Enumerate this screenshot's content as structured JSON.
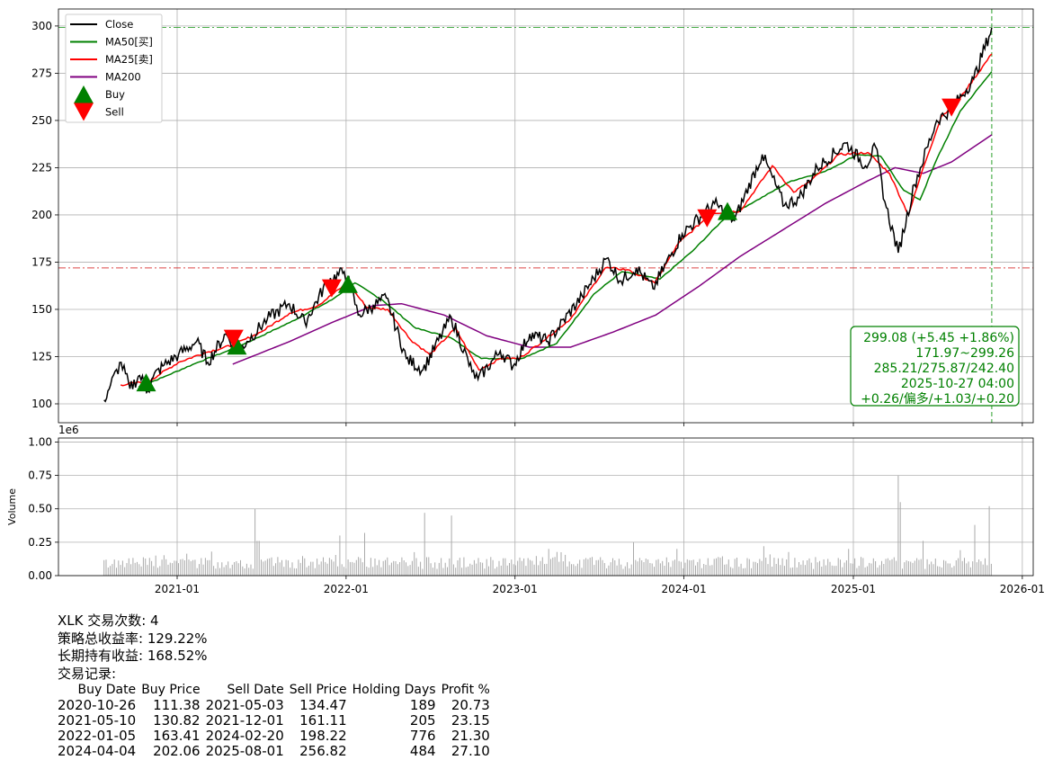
{
  "chart_data": [
    {
      "type": "line",
      "panel": "price",
      "x_ticks": [
        "2021-01",
        "2022-01",
        "2023-01",
        "2024-01",
        "2025-01",
        "2026-01"
      ],
      "ylim": [
        90,
        309
      ],
      "y_ticks": [
        100,
        125,
        150,
        175,
        200,
        225,
        250,
        275,
        300
      ],
      "grid": true,
      "legend_position": "top-left",
      "legend": [
        "Close",
        "MA50[买]",
        "MA25[卖]",
        "MA200",
        "Buy",
        "Sell"
      ],
      "colors": {
        "Close": "#000000",
        "MA50": "#008000",
        "MA25": "#ff0000",
        "MA200": "#800080",
        "Buy": "#008000",
        "Sell": "#ff0000",
        "hline_top": "#2ca02c",
        "hline_low": "#d62728"
      },
      "hlines": [
        {
          "value": 299.26,
          "style": "dash-dot",
          "color": "green"
        },
        {
          "value": 171.97,
          "style": "dash-dot",
          "color": "red"
        }
      ],
      "vline": {
        "date": "2025-10-27",
        "style": "dashed",
        "color": "green"
      },
      "close_series": [
        [
          "2020-07-27",
          102
        ],
        [
          "2020-08-10",
          110
        ],
        [
          "2020-09-02",
          122
        ],
        [
          "2020-09-21",
          108
        ],
        [
          "2020-10-12",
          115
        ],
        [
          "2020-10-30",
          107
        ],
        [
          "2020-11-10",
          114
        ],
        [
          "2020-12-01",
          120
        ],
        [
          "2021-01-04",
          126
        ],
        [
          "2021-02-12",
          133
        ],
        [
          "2021-03-08",
          122
        ],
        [
          "2021-04-16",
          137
        ],
        [
          "2021-05-12",
          128
        ],
        [
          "2021-06-01",
          133
        ],
        [
          "2021-07-15",
          145
        ],
        [
          "2021-08-31",
          153
        ],
        [
          "2021-10-04",
          143
        ],
        [
          "2021-11-22",
          165
        ],
        [
          "2021-12-28",
          170
        ],
        [
          "2022-01-10",
          163
        ],
        [
          "2022-01-27",
          147
        ],
        [
          "2022-03-01",
          152
        ],
        [
          "2022-03-29",
          156
        ],
        [
          "2022-05-11",
          124
        ],
        [
          "2022-06-16",
          118
        ],
        [
          "2022-08-16",
          146
        ],
        [
          "2022-09-30",
          117
        ],
        [
          "2022-10-13",
          113
        ],
        [
          "2022-11-30",
          128
        ],
        [
          "2022-12-28",
          120
        ],
        [
          "2023-02-02",
          137
        ],
        [
          "2023-03-13",
          133
        ],
        [
          "2023-05-26",
          157
        ],
        [
          "2023-07-18",
          177
        ],
        [
          "2023-08-18",
          165
        ],
        [
          "2023-09-20",
          172
        ],
        [
          "2023-10-26",
          161
        ],
        [
          "2023-12-28",
          190
        ],
        [
          "2024-03-07",
          206
        ],
        [
          "2024-04-19",
          197
        ],
        [
          "2024-06-18",
          232
        ],
        [
          "2024-08-05",
          205
        ],
        [
          "2024-09-06",
          209
        ],
        [
          "2024-10-15",
          225
        ],
        [
          "2024-12-16",
          238
        ],
        [
          "2025-01-27",
          226
        ],
        [
          "2025-02-18",
          236
        ],
        [
          "2025-03-10",
          207
        ],
        [
          "2025-04-08",
          180
        ],
        [
          "2025-05-13",
          216
        ],
        [
          "2025-06-30",
          250
        ],
        [
          "2025-08-01",
          256
        ],
        [
          "2025-09-18",
          272
        ],
        [
          "2025-10-27",
          299.08
        ]
      ],
      "ma25_series": [
        [
          "2020-09-01",
          110
        ],
        [
          "2020-11-01",
          112
        ],
        [
          "2021-01-04",
          122
        ],
        [
          "2021-03-01",
          127
        ],
        [
          "2021-05-01",
          131
        ],
        [
          "2021-07-01",
          138
        ],
        [
          "2021-09-01",
          148
        ],
        [
          "2021-11-01",
          152
        ],
        [
          "2022-01-04",
          164
        ],
        [
          "2022-02-15",
          151
        ],
        [
          "2022-04-01",
          150
        ],
        [
          "2022-05-20",
          134
        ],
        [
          "2022-07-01",
          126
        ],
        [
          "2022-08-25",
          140
        ],
        [
          "2022-10-15",
          118
        ],
        [
          "2022-12-01",
          124
        ],
        [
          "2023-01-10",
          124
        ],
        [
          "2023-03-01",
          133
        ],
        [
          "2023-05-01",
          145
        ],
        [
          "2023-07-15",
          172
        ],
        [
          "2023-09-01",
          171
        ],
        [
          "2023-10-30",
          164
        ],
        [
          "2023-12-20",
          185
        ],
        [
          "2024-03-01",
          201
        ],
        [
          "2024-05-01",
          202
        ],
        [
          "2024-07-10",
          226
        ],
        [
          "2024-08-25",
          212
        ],
        [
          "2024-10-01",
          218
        ],
        [
          "2024-12-01",
          232
        ],
        [
          "2025-02-01",
          233
        ],
        [
          "2025-03-20",
          222
        ],
        [
          "2025-04-30",
          200
        ],
        [
          "2025-06-01",
          225
        ],
        [
          "2025-07-10",
          252
        ],
        [
          "2025-08-20",
          262
        ],
        [
          "2025-10-27",
          285.21
        ]
      ],
      "ma50_series": [
        [
          "2020-10-10",
          109
        ],
        [
          "2020-12-01",
          114
        ],
        [
          "2021-02-15",
          122
        ],
        [
          "2021-04-20",
          128
        ],
        [
          "2021-06-15",
          134
        ],
        [
          "2021-09-01",
          143
        ],
        [
          "2021-12-01",
          155
        ],
        [
          "2022-01-20",
          164
        ],
        [
          "2022-03-20",
          155
        ],
        [
          "2022-06-01",
          140
        ],
        [
          "2022-08-15",
          135
        ],
        [
          "2022-10-20",
          124
        ],
        [
          "2023-01-15",
          124
        ],
        [
          "2023-04-01",
          132
        ],
        [
          "2023-06-20",
          158
        ],
        [
          "2023-08-20",
          170
        ],
        [
          "2023-11-10",
          166
        ],
        [
          "2024-01-20",
          181
        ],
        [
          "2024-04-01",
          199
        ],
        [
          "2024-06-01",
          207
        ],
        [
          "2024-08-20",
          218
        ],
        [
          "2024-11-01",
          223
        ],
        [
          "2025-01-10",
          232
        ],
        [
          "2025-03-01",
          231
        ],
        [
          "2025-04-20",
          213
        ],
        [
          "2025-05-25",
          208
        ],
        [
          "2025-07-01",
          230
        ],
        [
          "2025-08-20",
          255
        ],
        [
          "2025-10-27",
          275.87
        ]
      ],
      "ma200_series": [
        [
          "2021-05-01",
          121
        ],
        [
          "2021-09-01",
          133
        ],
        [
          "2021-12-01",
          143
        ],
        [
          "2022-03-01",
          152
        ],
        [
          "2022-05-01",
          153
        ],
        [
          "2022-08-01",
          147
        ],
        [
          "2022-11-01",
          136
        ],
        [
          "2023-02-01",
          130
        ],
        [
          "2023-05-01",
          130
        ],
        [
          "2023-08-01",
          138
        ],
        [
          "2023-11-01",
          147
        ],
        [
          "2024-02-01",
          162
        ],
        [
          "2024-05-01",
          178
        ],
        [
          "2024-08-01",
          192
        ],
        [
          "2024-11-01",
          206
        ],
        [
          "2025-02-01",
          218
        ],
        [
          "2025-04-01",
          225
        ],
        [
          "2025-06-01",
          222
        ],
        [
          "2025-08-01",
          228
        ],
        [
          "2025-10-27",
          242.4
        ]
      ],
      "buy_markers": [
        [
          "2020-10-26",
          111.38
        ],
        [
          "2021-05-10",
          130.82
        ],
        [
          "2022-01-05",
          163.41
        ],
        [
          "2024-04-04",
          202.06
        ]
      ],
      "sell_markers": [
        [
          "2021-05-03",
          134.47
        ],
        [
          "2021-12-01",
          161.11
        ],
        [
          "2024-02-20",
          198.22
        ],
        [
          "2025-08-01",
          256.82
        ]
      ],
      "info_box": [
        "299.08 (+5.45 +1.86%)",
        "171.97~299.26",
        "285.21/275.87/242.40",
        "2025-10-27 04:00",
        "+0.26/偏多/+1.03/+0.20"
      ]
    },
    {
      "type": "bar",
      "panel": "volume",
      "ylabel": "Volume",
      "scale_label": "1e6",
      "ylim": [
        0,
        1.03
      ],
      "y_ticks": [
        "0.00",
        "0.25",
        "0.50",
        "0.75",
        "1.00"
      ],
      "grid": true,
      "bar_color": "#a9a9a9",
      "volume_samples": [
        [
          "2020-08-01",
          0.12
        ],
        [
          "2020-11-15",
          0.15
        ],
        [
          "2021-06-18",
          0.5
        ],
        [
          "2021-06-25",
          0.26
        ],
        [
          "2021-12-17",
          0.3
        ],
        [
          "2022-02-10",
          0.32
        ],
        [
          "2022-06-20",
          0.47
        ],
        [
          "2022-08-15",
          0.45
        ],
        [
          "2023-03-15",
          0.2
        ],
        [
          "2023-09-15",
          0.25
        ],
        [
          "2023-12-15",
          0.2
        ],
        [
          "2024-06-20",
          0.22
        ],
        [
          "2024-12-20",
          0.2
        ],
        [
          "2025-04-07",
          0.75
        ],
        [
          "2025-04-14",
          0.55
        ],
        [
          "2025-06-01",
          0.26
        ],
        [
          "2025-09-19",
          0.38
        ],
        [
          "2025-10-20",
          0.52
        ]
      ]
    }
  ],
  "report": {
    "summary_line": "XLK 交易次数: 4",
    "total_return": "策略总收益率: 129.22%",
    "hold_return": "长期持有收益: 168.52%",
    "records_title": "交易记录:",
    "columns": [
      "Buy Date",
      "Buy Price",
      "Sell Date",
      "Sell Price",
      "Holding Days",
      "Profit %"
    ],
    "rows": [
      [
        "2020-10-26",
        "111.38",
        "2021-05-03",
        "134.47",
        "189",
        "20.73"
      ],
      [
        "2021-05-10",
        "130.82",
        "2021-12-01",
        "161.11",
        "205",
        "23.15"
      ],
      [
        "2022-01-05",
        "163.41",
        "2024-02-20",
        "198.22",
        "776",
        "21.30"
      ],
      [
        "2024-04-04",
        "202.06",
        "2025-08-01",
        "256.82",
        "484",
        "27.10"
      ]
    ]
  }
}
